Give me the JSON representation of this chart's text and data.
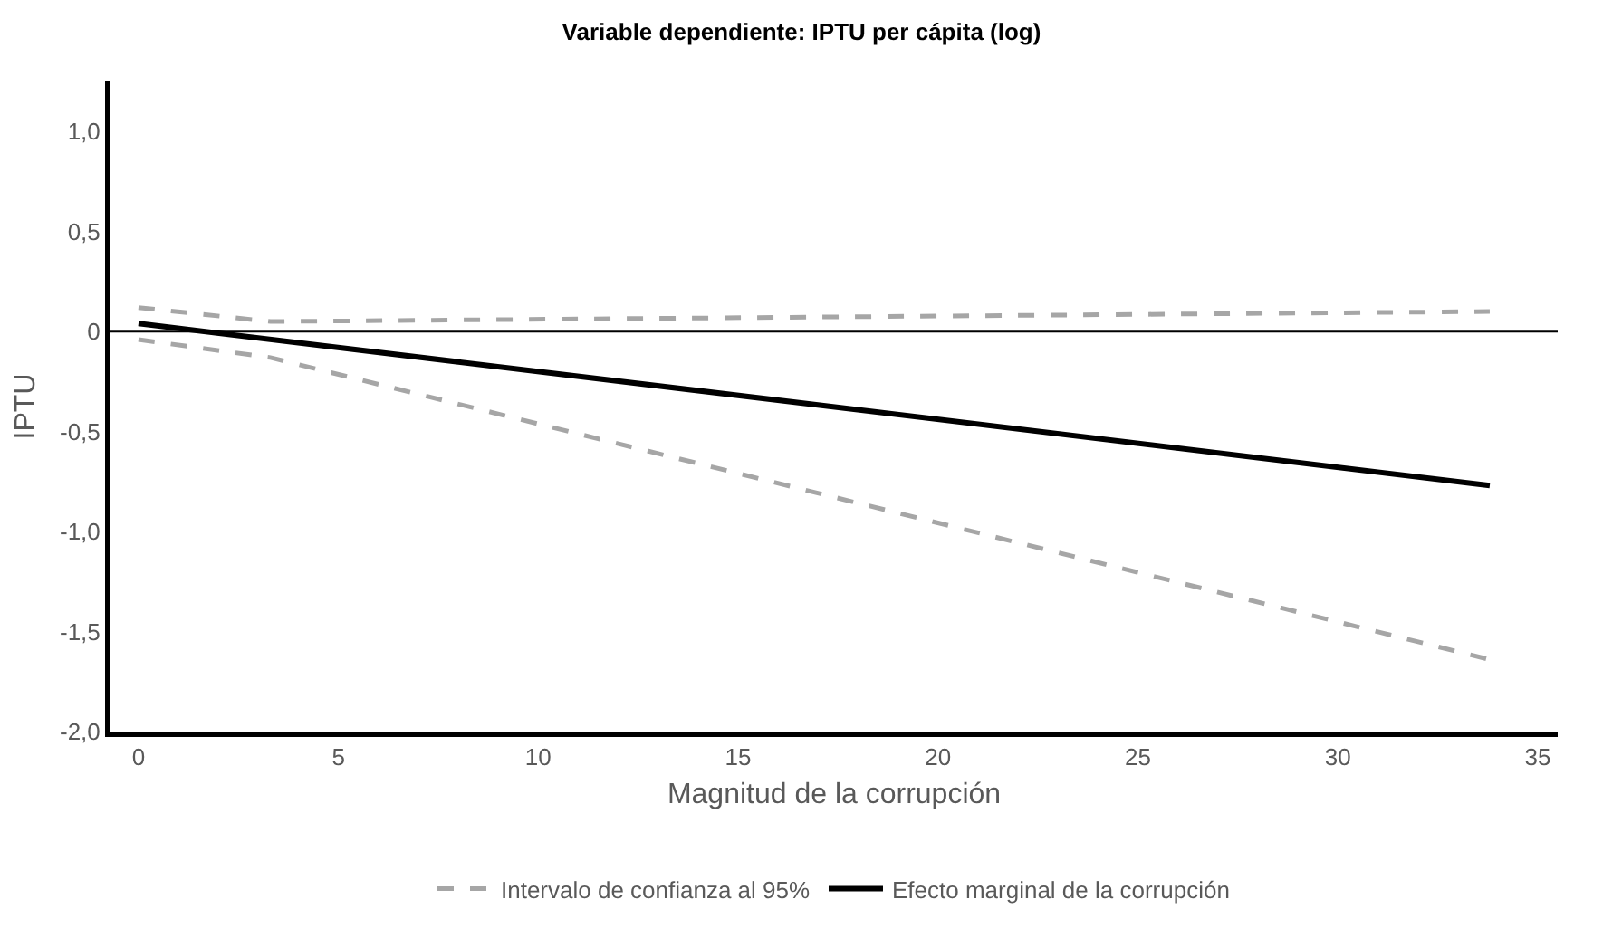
{
  "chart_data": {
    "type": "line",
    "title": "Variable dependiente: IPTU per cápita (log)",
    "xlabel": "Magnitud de la corrupción",
    "ylabel": "IPTU",
    "xlim": [
      -0.7,
      35.5
    ],
    "xticks": [
      0,
      5,
      10,
      15,
      20,
      25,
      30,
      35
    ],
    "ylim": [
      -2.0,
      1.25
    ],
    "yticks": [
      {
        "value": 1.0,
        "label": "1,0"
      },
      {
        "value": 0.5,
        "label": "0,5"
      },
      0,
      {
        "value": -0.5,
        "label": "-0,5"
      },
      {
        "value": -1.0,
        "label": "-1,0"
      },
      {
        "value": -1.5,
        "label": "-1,5"
      },
      {
        "value": -2.0,
        "label": "-2,0"
      }
    ],
    "series": [
      {
        "name": "Intervalo de confianza al 95%",
        "color": "#a6a6a6",
        "line_style": "dashed",
        "x": [
          0,
          3.3,
          33.8
        ],
        "values": [
          0.12,
          0.05,
          0.1
        ]
      },
      {
        "color": "#a6a6a6",
        "line_style": "dashed",
        "x": [
          0,
          3.3,
          33.8
        ],
        "values": [
          -0.04,
          -0.13,
          -1.64
        ]
      },
      {
        "name": "Efecto marginal de la corrupción",
        "color": "#000000",
        "line_style": "solid",
        "x": [
          0,
          33.8
        ],
        "values": [
          0.04,
          -0.77
        ]
      }
    ],
    "ref_lines": [
      {
        "axis": "y",
        "value": 0,
        "color": "#000000"
      }
    ],
    "legend": "bottom",
    "marker": "none"
  }
}
